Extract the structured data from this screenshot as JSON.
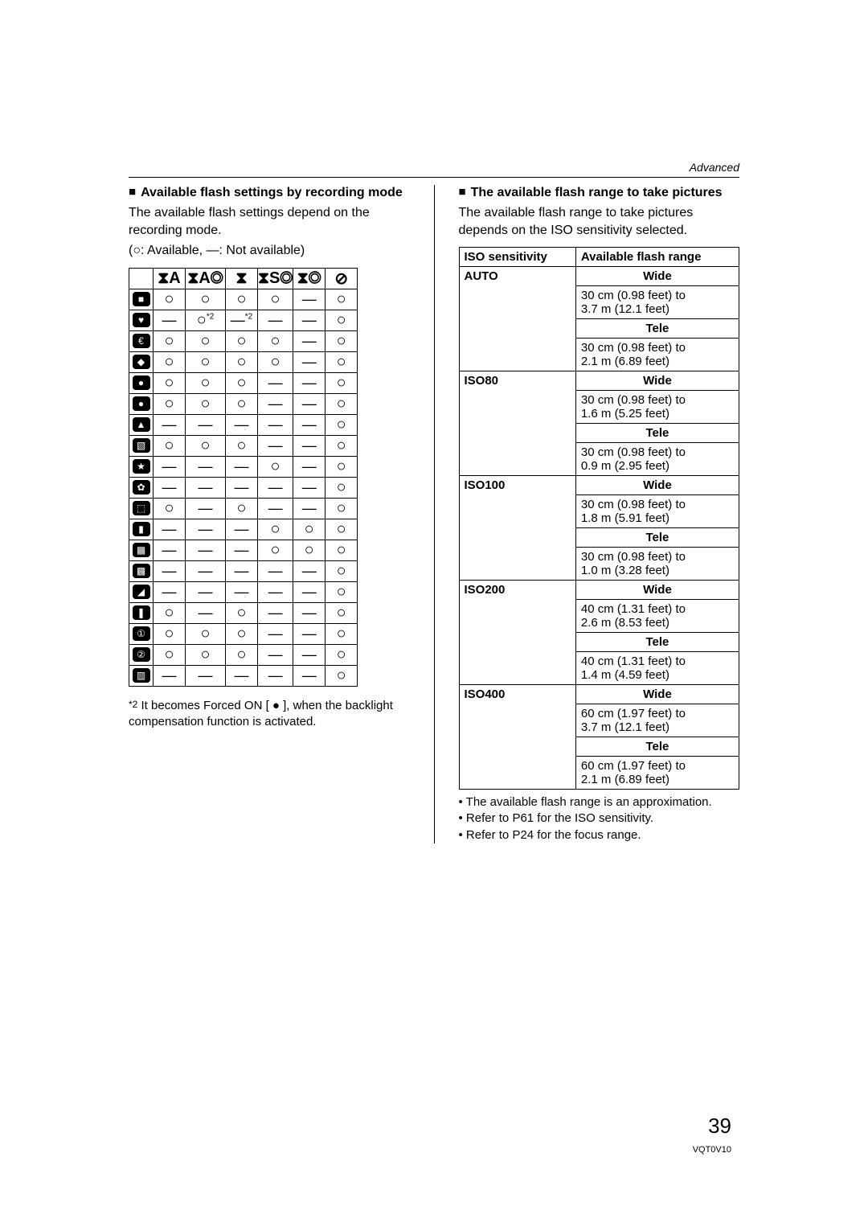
{
  "topRightLabel": "Advanced",
  "pageNumber": "39",
  "docCode": "VQT0V10",
  "left": {
    "heading": "Available flash settings by recording mode",
    "body1": "The available flash settings depend on the recording mode.",
    "legend": "(○:  Available,  —:  Not available)",
    "flashHeaders": [
      "⧗A",
      "⧗A◎",
      "⧗",
      "⧗S◎",
      "⧗◎",
      "⊘"
    ],
    "modeGlyphs": [
      "■",
      "♥",
      "€",
      "◆",
      "●",
      "●",
      "▲",
      "▧",
      "★",
      "✿",
      "⬚",
      "▮",
      "▦",
      "▩",
      "◢",
      "❚",
      "①",
      "②",
      "▥"
    ],
    "availability": [
      [
        "o",
        "o",
        "o",
        "o",
        "d",
        "o"
      ],
      [
        "d",
        "o*",
        "d*",
        "d",
        "d",
        "o"
      ],
      [
        "o",
        "o",
        "o",
        "o",
        "d",
        "o"
      ],
      [
        "o",
        "o",
        "o",
        "o",
        "d",
        "o"
      ],
      [
        "o",
        "o",
        "o",
        "d",
        "d",
        "o"
      ],
      [
        "o",
        "o",
        "o",
        "d",
        "d",
        "o"
      ],
      [
        "d",
        "d",
        "d",
        "d",
        "d",
        "o"
      ],
      [
        "o",
        "o",
        "o",
        "d",
        "d",
        "o"
      ],
      [
        "d",
        "d",
        "d",
        "o",
        "d",
        "o"
      ],
      [
        "d",
        "d",
        "d",
        "d",
        "d",
        "o"
      ],
      [
        "o",
        "d",
        "o",
        "d",
        "d",
        "o"
      ],
      [
        "d",
        "d",
        "d",
        "o",
        "o",
        "o"
      ],
      [
        "d",
        "d",
        "d",
        "o",
        "o",
        "o"
      ],
      [
        "d",
        "d",
        "d",
        "d",
        "d",
        "o"
      ],
      [
        "d",
        "d",
        "d",
        "d",
        "d",
        "o"
      ],
      [
        "o",
        "d",
        "o",
        "d",
        "d",
        "o"
      ],
      [
        "o",
        "o",
        "o",
        "d",
        "d",
        "o"
      ],
      [
        "o",
        "o",
        "o",
        "d",
        "d",
        "o"
      ],
      [
        "d",
        "d",
        "d",
        "d",
        "d",
        "o"
      ]
    ],
    "footnote": "It becomes Forced ON [ ● ], when the backlight compensation function is activated.",
    "footnoteLabel": "*2"
  },
  "right": {
    "heading": "The available flash range to take pictures",
    "body1": "The available flash range to take pictures depends on the ISO sensitivity selected.",
    "th1": "ISO sensitivity",
    "th2": "Available flash range",
    "labels": {
      "wide": "Wide",
      "tele": "Tele"
    },
    "rows": [
      {
        "iso": "AUTO",
        "wide": [
          "30 cm (0.98 feet) to",
          "3.7 m (12.1 feet)"
        ],
        "tele": [
          "30 cm (0.98 feet) to",
          "2.1 m (6.89 feet)"
        ]
      },
      {
        "iso": "ISO80",
        "wide": [
          "30 cm (0.98 feet) to",
          "1.6 m (5.25 feet)"
        ],
        "tele": [
          "30 cm (0.98 feet) to",
          "0.9 m (2.95 feet)"
        ]
      },
      {
        "iso": "ISO100",
        "wide": [
          "30 cm (0.98 feet) to",
          "1.8 m (5.91 feet)"
        ],
        "tele": [
          "30 cm (0.98 feet) to",
          "1.0 m (3.28 feet)"
        ]
      },
      {
        "iso": "ISO200",
        "wide": [
          "40 cm (1.31 feet) to",
          "2.6 m (8.53 feet)"
        ],
        "tele": [
          "40 cm (1.31 feet) to",
          "1.4 m (4.59 feet)"
        ]
      },
      {
        "iso": "ISO400",
        "wide": [
          "60 cm (1.97 feet) to",
          "3.7 m (12.1 feet)"
        ],
        "tele": [
          "60 cm (1.97 feet) to",
          "2.1 m (6.89 feet)"
        ]
      }
    ],
    "bullets": [
      "The available flash range is an approximation.",
      "Refer to P61 for the ISO sensitivity.",
      "Refer to P24 for the focus range."
    ]
  }
}
